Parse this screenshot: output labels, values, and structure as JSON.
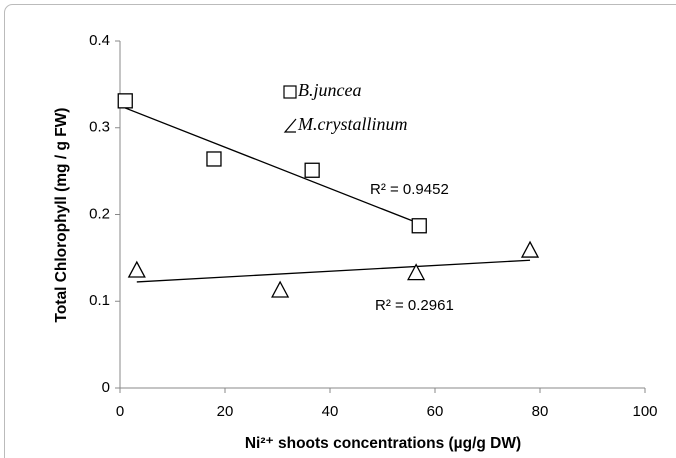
{
  "chart_data": {
    "type": "scatter",
    "x_label": "Ni²⁺ shoots concentrations (µg/g DW)",
    "y_label": "Total Chlorophyll (mg / g FW)",
    "xlim": [
      0,
      100
    ],
    "xticks": [
      0,
      20,
      40,
      60,
      80,
      100
    ],
    "ylim": [
      0,
      0.4
    ],
    "yticks": [
      0,
      0.1,
      0.2,
      0.3,
      0.4
    ],
    "grid": false,
    "series": [
      {
        "name": "B.juncea",
        "marker": "square",
        "color": "#000000",
        "x": [
          1,
          17.9,
          36.6,
          57
        ],
        "values": [
          0.331,
          0.264,
          0.251,
          0.187
        ],
        "trendline": "linear",
        "r2_label": "R² = 0.9452"
      },
      {
        "name": "M.crystallinum",
        "marker": "triangle",
        "color": "#000000",
        "x": [
          3.2,
          30.5,
          56.4,
          78.1
        ],
        "values": [
          0.136,
          0.113,
          0.133,
          0.159
        ],
        "trendline": "linear",
        "r2_label": "R² = 0.2961"
      }
    ]
  }
}
